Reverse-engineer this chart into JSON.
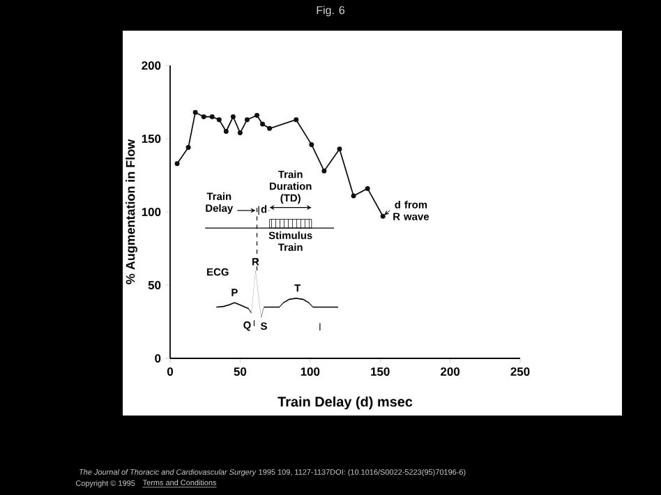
{
  "chart_data": {
    "type": "line",
    "title": "Fig. 6",
    "xlabel": "Train Delay (d) msec",
    "ylabel": "% Augmentation in Flow",
    "x": [
      5,
      13,
      18,
      24,
      30,
      35,
      40,
      45,
      50,
      55,
      62,
      66,
      71,
      90,
      101,
      110,
      121,
      131,
      141,
      152
    ],
    "values": [
      133,
      144,
      168,
      165,
      165,
      163,
      155,
      165,
      154,
      163,
      166,
      160,
      157,
      163,
      146,
      128,
      143,
      111,
      116,
      97
    ],
    "color": "#111111",
    "marker": "circle",
    "line_style": "solid",
    "grid": false,
    "xlim": [
      0,
      250
    ],
    "ylim": [
      0,
      200
    ],
    "xticks": [
      0,
      50,
      100,
      150,
      200,
      250
    ],
    "yticks": [
      0,
      50,
      100,
      150,
      200
    ],
    "annotations": [
      "Train Delay",
      "d",
      "Train Duration (TD)",
      "Stimulus Train",
      "ECG",
      "P",
      "R",
      "Q",
      "S",
      "T",
      "d from R wave",
      "*The Journal of Thoracic and Cardiovascular Surgery* 1995 109, 1127-1137DOI: (10.1016/S0022-5223(95)70196-6)",
      "Copyright © 1995",
      "Terms and Conditions"
    ]
  }
}
